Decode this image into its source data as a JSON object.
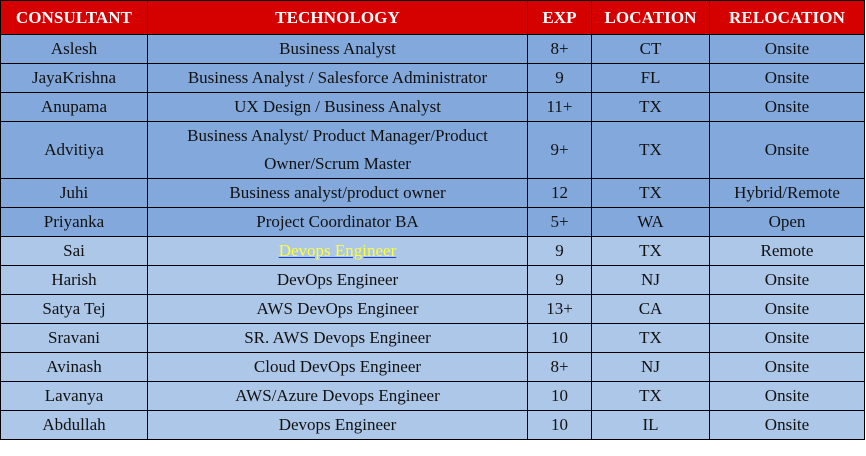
{
  "table": {
    "headers": {
      "consultant": "CONSULTANT",
      "technology": "TECHNOLOGY",
      "exp": "EXP",
      "location": "LOCATION",
      "relocation": "RELOCATION"
    },
    "colors": {
      "header_bg": "#d50000",
      "header_text": "#ffffff",
      "row_dark_bg": "#83a9dc",
      "row_light_bg": "#adc7e8",
      "link_text": "#ffff33"
    },
    "rows": [
      {
        "consultant": "Aslesh",
        "technology": "Business Analyst",
        "exp": "8+",
        "location": "CT",
        "relocation": "Onsite"
      },
      {
        "consultant": "JayaKrishna",
        "technology": "Business Analyst / Salesforce Administrator",
        "exp": "9",
        "location": "FL",
        "relocation": "Onsite"
      },
      {
        "consultant": "Anupama",
        "technology": "UX Design / Business Analyst",
        "exp": "11+",
        "location": "TX",
        "relocation": "Onsite"
      },
      {
        "consultant": "Advitiya",
        "technology": "Business Analyst/ Product Manager/Product Owner/Scrum Master",
        "exp": "9+",
        "location": "TX",
        "relocation": "Onsite"
      },
      {
        "consultant": "Juhi",
        "technology": "Business analyst/product owner",
        "exp": "12",
        "location": "TX",
        "relocation": "Hybrid/Remote"
      },
      {
        "consultant": "Priyanka",
        "technology": "Project Coordinator BA",
        "exp": "5+",
        "location": "WA",
        "relocation": "Open"
      },
      {
        "consultant": "Sai",
        "technology": "Devops Engineer",
        "exp": "9",
        "location": "TX",
        "relocation": "Remote"
      },
      {
        "consultant": "Harish",
        "technology": "DevOps Engineer",
        "exp": "9",
        "location": "NJ",
        "relocation": "Onsite"
      },
      {
        "consultant": "Satya Tej",
        "technology": "AWS DevOps Engineer",
        "exp": "13+",
        "location": "CA",
        "relocation": "Onsite"
      },
      {
        "consultant": "Sravani",
        "technology": "SR. AWS Devops Engineer",
        "exp": "10",
        "location": "TX",
        "relocation": "Onsite"
      },
      {
        "consultant": "Avinash",
        "technology": "Cloud DevOps Engineer",
        "exp": "8+",
        "location": "NJ",
        "relocation": "Onsite"
      },
      {
        "consultant": "Lavanya",
        "technology": "AWS/Azure Devops Engineer",
        "exp": "10",
        "location": "TX",
        "relocation": "Onsite"
      },
      {
        "consultant": "Abdullah",
        "technology": "Devops Engineer",
        "exp": "10",
        "location": "IL",
        "relocation": "Onsite"
      }
    ]
  }
}
